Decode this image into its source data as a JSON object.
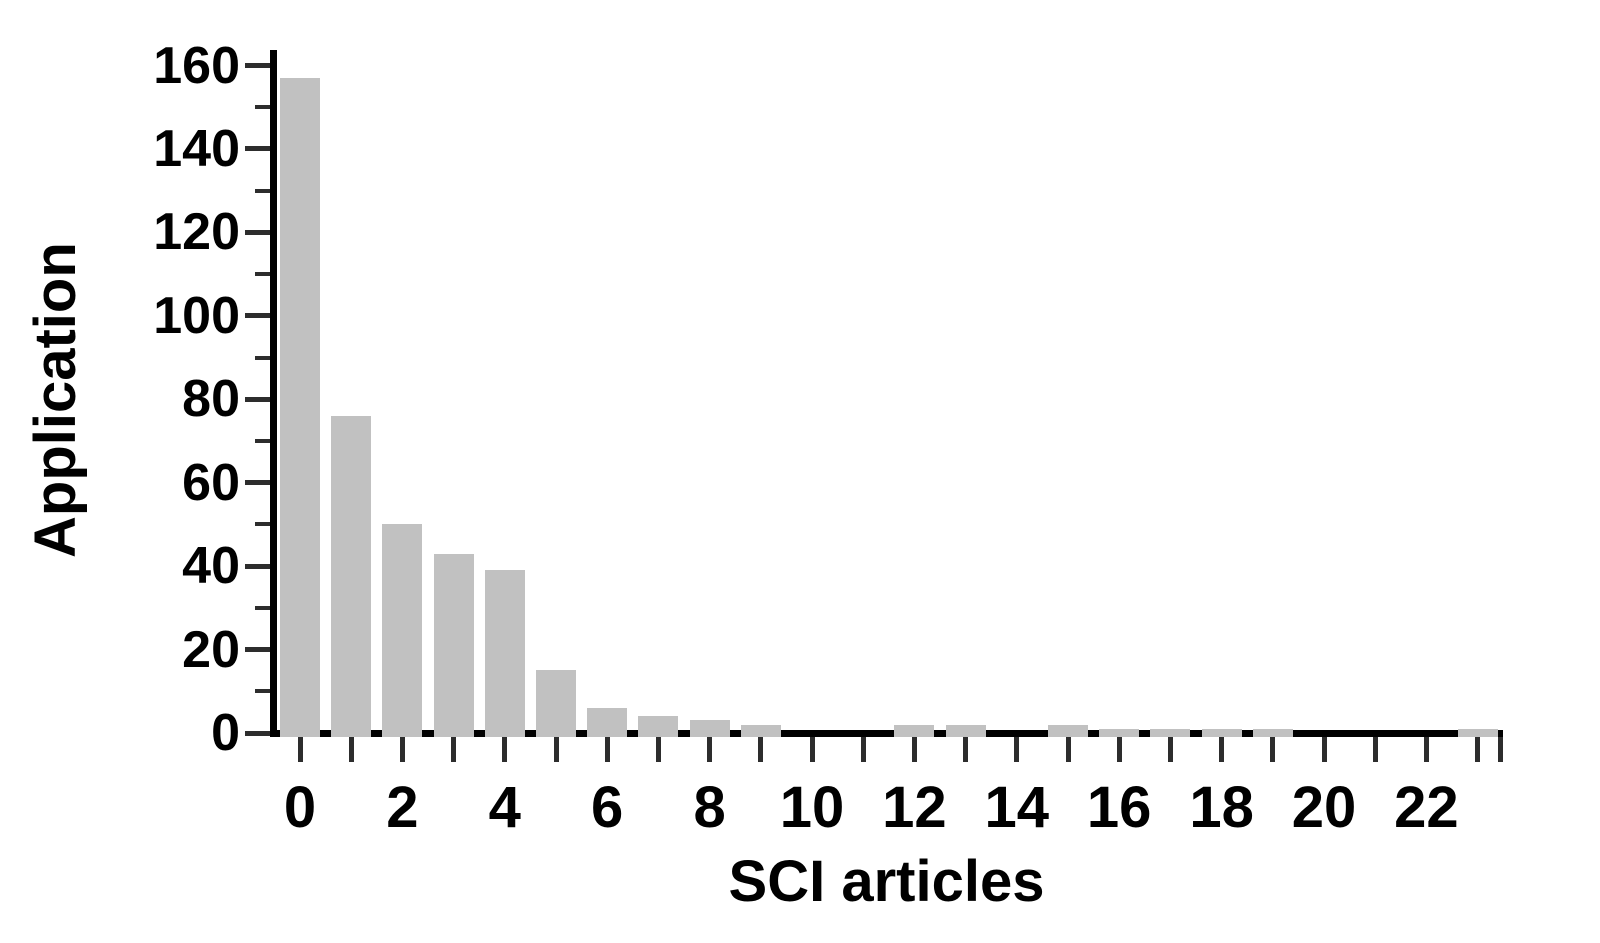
{
  "chart_data": {
    "type": "bar",
    "title": "",
    "xlabel": "SCI articles",
    "ylabel": "Application",
    "categories": [
      0,
      1,
      2,
      3,
      4,
      5,
      6,
      7,
      8,
      9,
      10,
      11,
      12,
      13,
      14,
      15,
      16,
      17,
      18,
      19,
      20,
      21,
      22,
      23
    ],
    "values": [
      157,
      76,
      50,
      43,
      39,
      15,
      6,
      4,
      3,
      2,
      0,
      0,
      2,
      2,
      0,
      2,
      1,
      1,
      1,
      1,
      0,
      0,
      0,
      1
    ],
    "xlim": [
      -0.55,
      23.5
    ],
    "ylim": [
      0,
      163
    ],
    "x_tick_step": 1,
    "x_label_values": [
      0,
      2,
      4,
      6,
      8,
      10,
      12,
      14,
      16,
      18,
      20,
      22
    ],
    "y_major_ticks": [
      0,
      20,
      40,
      60,
      80,
      100,
      120,
      140,
      160
    ],
    "y_minor_ticks": [
      10,
      30,
      50,
      70,
      90,
      110,
      130,
      150
    ],
    "bar_color": "#c1c1c1",
    "axis_color": "#000000",
    "tick_color": "#2d2d2d",
    "background_color": "#ffffff",
    "grid": false,
    "legend": null
  }
}
